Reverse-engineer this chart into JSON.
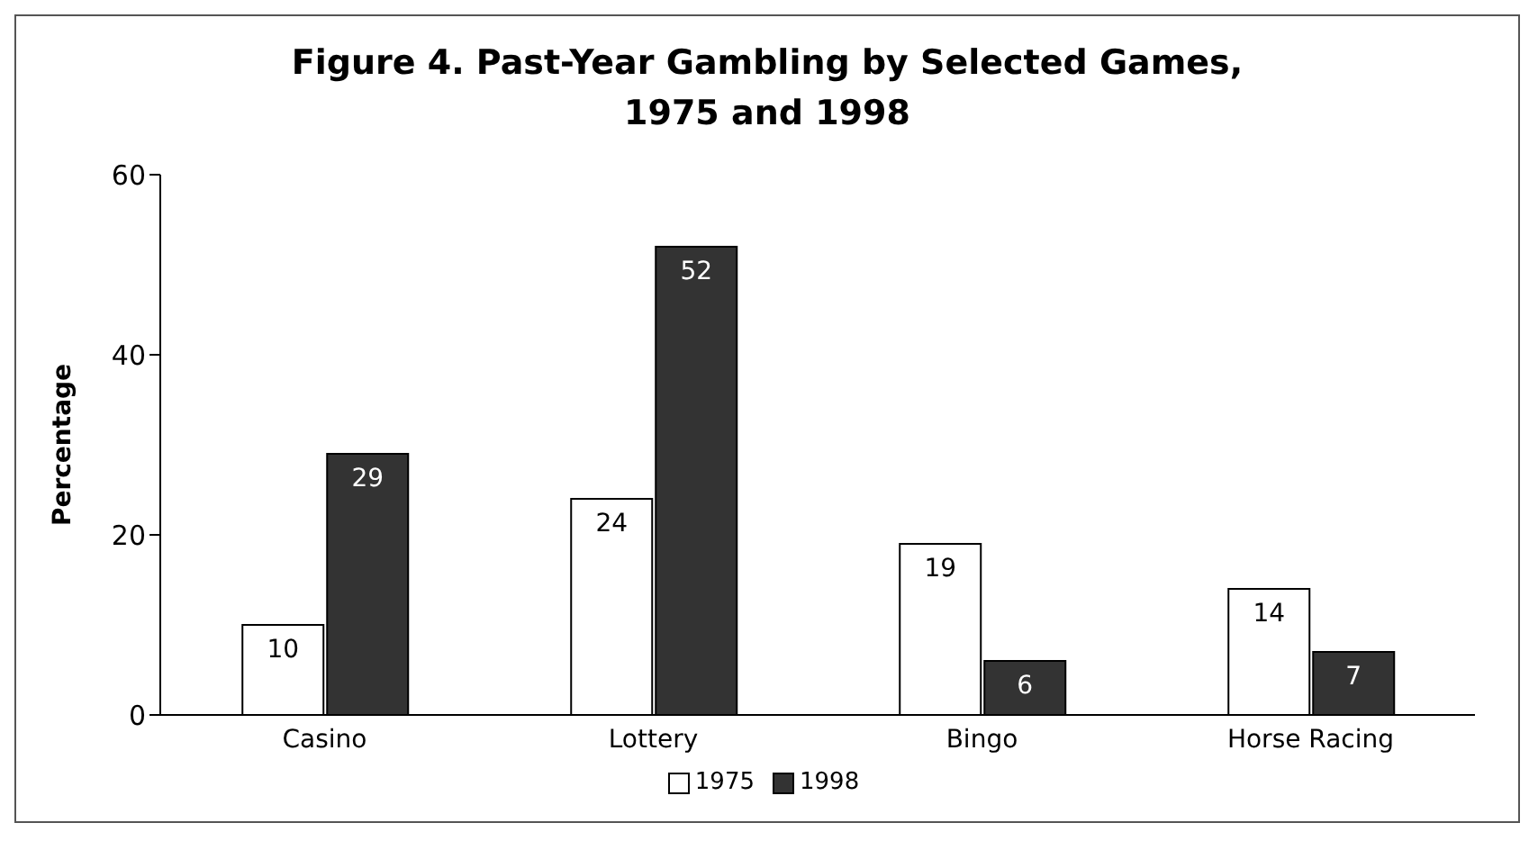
{
  "chart_data": {
    "type": "bar",
    "title": "Figure 4. Past-Year Gambling by Selected Games, 1975 and 1998",
    "ylabel": "Percentage",
    "categories": [
      "Casino",
      "Lottery",
      "Bingo",
      "Horse Racing"
    ],
    "series": [
      {
        "name": "1975",
        "color": "#ffffff",
        "values": [
          10,
          24,
          19,
          14
        ]
      },
      {
        "name": "1998",
        "color": "#333333",
        "values": [
          29,
          52,
          6,
          7
        ]
      }
    ],
    "ylim": [
      0,
      60
    ],
    "yticks": [
      0,
      20,
      40,
      60
    ],
    "grid": false,
    "legend": "bottom",
    "data_labels": true
  }
}
